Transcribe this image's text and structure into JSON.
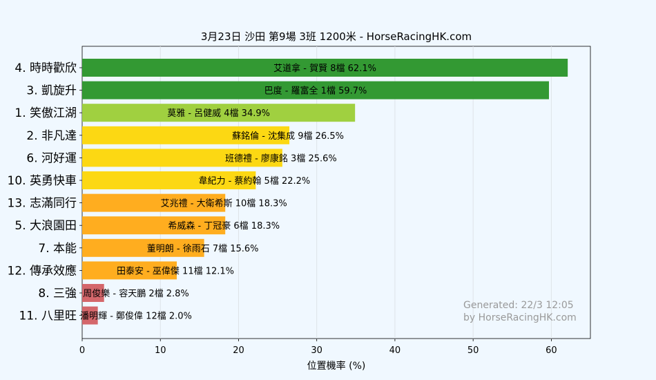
{
  "chart_data": {
    "type": "bar",
    "orientation": "horizontal",
    "title": "3月23日  沙田  第9場  3班  1200米 - HorseRacingHK.com",
    "xlabel": "位置機率 (%)",
    "ylabel": "",
    "xlim": [
      0,
      65
    ],
    "xticks": [
      0,
      10,
      20,
      30,
      40,
      50,
      60
    ],
    "grid": "vertical",
    "categories": [
      "4. 時時歡欣",
      "3. 凱旋升",
      "1. 笑傲江湖",
      "2. 非凡達",
      "6. 河好運",
      "10. 英勇快車",
      "13. 志滿同行",
      "5. 大浪園田",
      "7. 本能",
      "12. 傳承效應",
      "8. 三強",
      "11. 八里旺"
    ],
    "values": [
      62.1,
      59.7,
      34.9,
      26.5,
      25.6,
      22.2,
      18.3,
      18.3,
      15.6,
      12.1,
      2.8,
      2.0
    ],
    "bar_labels": [
      "艾道拿 - 賀賢 8檔  62.1%",
      "巴度 - 羅富全 1檔  59.7%",
      "莫雅 - 呂健威 4檔  34.9%",
      "蘇銘倫 - 沈集成 9檔  26.5%",
      "班德禮 - 廖康銘 3檔  25.6%",
      "韋紀力 - 蔡約翰 5檔  22.2%",
      "艾兆禮 - 大衛希斯 10檔  18.3%",
      "希威森 - 丁冠豪 6檔  18.3%",
      "董明朗 - 徐雨石 7檔  15.6%",
      "田泰安 - 巫偉傑 11檔  12.1%",
      "周俊樂 - 容天鵬 2檔  2.8%",
      "潘明輝 - 鄭俊偉 12檔  2.0%"
    ],
    "bar_colors": [
      "#339933",
      "#339933",
      "#a0d040",
      "#fcd813",
      "#fcd813",
      "#fcd813",
      "#ffad1f",
      "#ffad1f",
      "#ffad1f",
      "#ffad1f",
      "#d4676b",
      "#d4676b"
    ],
    "annotation": [
      "Generated: 22/3 12:05",
      "by HorseRacingHK.com"
    ]
  }
}
